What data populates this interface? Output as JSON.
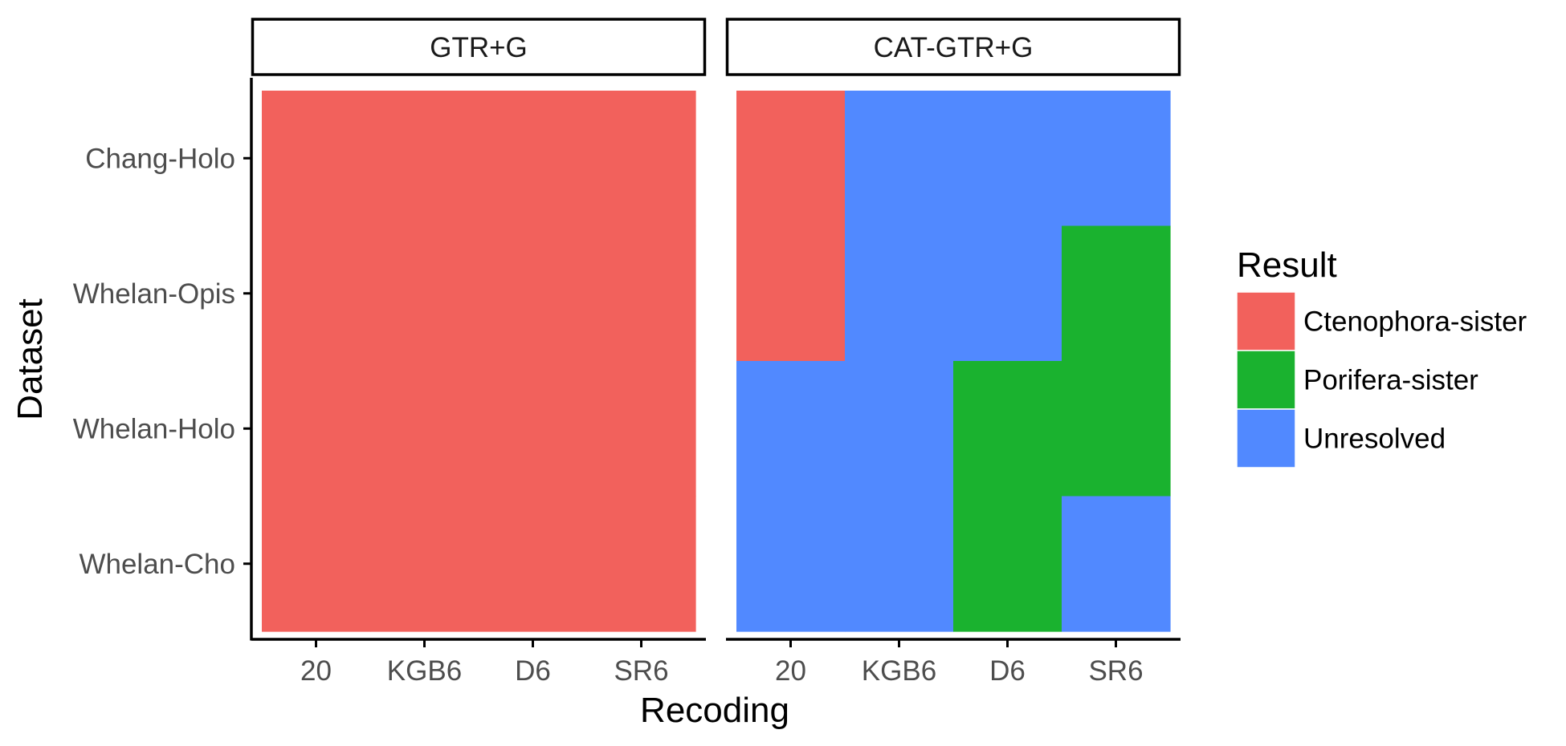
{
  "chart_data": {
    "type": "heatmap",
    "xlabel": "Recoding",
    "ylabel": "Dataset",
    "x_categories": [
      "20",
      "KGB6",
      "D6",
      "SR6"
    ],
    "y_categories": [
      "Chang-Holo",
      "Whelan-Opis",
      "Whelan-Holo",
      "Whelan-Cho"
    ],
    "legend": {
      "title": "Result",
      "placement": "right",
      "entries": [
        {
          "label": "Ctenophora-sister",
          "color": "#F2615C"
        },
        {
          "label": "Porifera-sister",
          "color": "#1AB22F"
        },
        {
          "label": "Unresolved",
          "color": "#5189FF"
        }
      ]
    },
    "panels": [
      {
        "title": "GTR+G",
        "values": [
          [
            "Ctenophora-sister",
            "Ctenophora-sister",
            "Ctenophora-sister",
            "Ctenophora-sister"
          ],
          [
            "Ctenophora-sister",
            "Ctenophora-sister",
            "Ctenophora-sister",
            "Ctenophora-sister"
          ],
          [
            "Ctenophora-sister",
            "Ctenophora-sister",
            "Ctenophora-sister",
            "Ctenophora-sister"
          ],
          [
            "Ctenophora-sister",
            "Ctenophora-sister",
            "Ctenophora-sister",
            "Ctenophora-sister"
          ]
        ]
      },
      {
        "title": "CAT-GTR+G",
        "values": [
          [
            "Ctenophora-sister",
            "Unresolved",
            "Unresolved",
            "Unresolved"
          ],
          [
            "Ctenophora-sister",
            "Unresolved",
            "Unresolved",
            "Porifera-sister"
          ],
          [
            "Unresolved",
            "Unresolved",
            "Porifera-sister",
            "Porifera-sister"
          ],
          [
            "Unresolved",
            "Unresolved",
            "Porifera-sister",
            "Unresolved"
          ]
        ]
      }
    ]
  }
}
